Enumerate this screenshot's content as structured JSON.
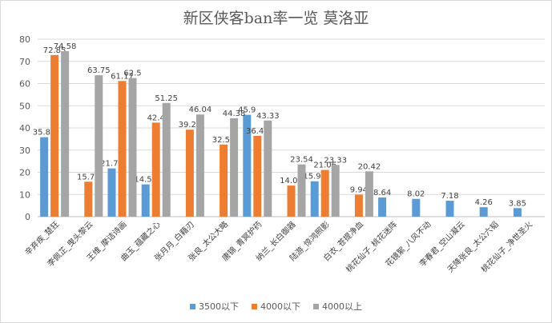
{
  "chart_data": {
    "type": "bar",
    "title": "新区侠客ban率一览 莫洛亚",
    "categories": [
      "辛弃疾_楚狂",
      "李佩芷_曳头黎云",
      "王维_摩诘诗画",
      "曲玉_蕴藏之心",
      "张月月_白藉刃",
      "张良_太公大略",
      "唐锦_青冥护药",
      "纳兰_长白御器",
      "陆游_惊鸿照影",
      "白衣_苍提净血",
      "桃花仙子_桃花迷阵",
      "花镜絮_八风不动",
      "李春君_空山凝云",
      "天降张良_太公六韬",
      "桃花仙子_净世圣火"
    ],
    "series": [
      {
        "name": "3500以下",
        "color": "#5b9bd5",
        "values": [
          35.82,
          null,
          21.75,
          14.56,
          null,
          null,
          45.9,
          null,
          15.95,
          null,
          8.64,
          8.02,
          7.18,
          4.26,
          3.85
        ]
      },
      {
        "name": "4000以下",
        "color": "#ed7d31",
        "values": [
          72.85,
          15.75,
          61.17,
          42.4,
          39.22,
          32.51,
          36.42,
          14.02,
          21.06,
          9.94,
          null,
          null,
          null,
          null,
          null
        ]
      },
      {
        "name": "4000以上",
        "color": "#a5a5a5",
        "values": [
          74.58,
          63.75,
          62.5,
          51.25,
          46.04,
          44.38,
          43.33,
          23.54,
          23.33,
          20.42,
          null,
          null,
          null,
          null,
          null
        ]
      }
    ],
    "ylim": [
      0,
      80
    ],
    "yticks": [
      0,
      10,
      20,
      30,
      40,
      50,
      60,
      70,
      80
    ],
    "grid": true,
    "legend_position": "bottom"
  }
}
